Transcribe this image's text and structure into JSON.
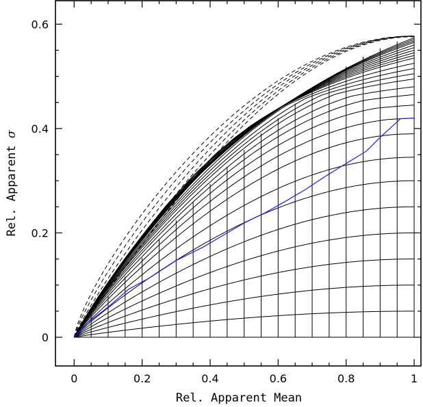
{
  "chart_data": {
    "type": "line",
    "title": "",
    "xlabel": "Rel. Apparent Mean",
    "ylabel_prefix": "Rel. Apparent",
    "ylabel_symbol": "σ",
    "xlim": [
      -0.055,
      1.02
    ],
    "ylim": [
      -0.055,
      0.645
    ],
    "x_ticks": [
      {
        "value": 0,
        "label": "0"
      },
      {
        "value": 0.2,
        "label": "0.2"
      },
      {
        "value": 0.4,
        "label": "0.4"
      },
      {
        "value": 0.6,
        "label": "0.6"
      },
      {
        "value": 0.8,
        "label": "0.8"
      },
      {
        "value": 1,
        "label": "1"
      }
    ],
    "y_ticks": [
      {
        "value": 0,
        "label": "0"
      },
      {
        "value": 0.2,
        "label": "0.2"
      },
      {
        "value": 0.4,
        "label": "0.4"
      },
      {
        "value": 0.6,
        "label": "0.6"
      }
    ],
    "x_minor_step": 0.05,
    "y_minor_step": 0.05,
    "grid": false,
    "solid_envelope_levels": [
      0.05,
      0.1,
      0.15,
      0.2,
      0.25,
      0.3,
      0.345,
      0.39,
      0.42,
      0.445,
      0.465,
      0.48,
      0.495,
      0.505,
      0.515,
      0.525,
      0.535,
      0.54,
      0.545,
      0.55,
      0.555,
      0.56,
      0.565,
      0.568,
      0.571,
      0.574
    ],
    "dashed_envelope_levels": [
      0.576,
      0.5765,
      0.577,
      0.5772,
      0.5774
    ],
    "mean_levels": [
      0.05,
      0.1,
      0.15,
      0.2,
      0.25,
      0.3,
      0.35,
      0.4,
      0.45,
      0.5,
      0.55,
      0.6,
      0.65,
      0.7,
      0.75,
      0.8,
      0.85,
      0.9,
      0.95,
      1.0
    ],
    "series": [
      {
        "color": "#1a1aff",
        "x": [
          0,
          0.04,
          0.1,
          0.16,
          0.22,
          0.3,
          0.38,
          0.44,
          0.5,
          0.56,
          0.62,
          0.68,
          0.74,
          0.8,
          0.86,
          0.9,
          0.93,
          0.96,
          1.0
        ],
        "y": [
          0,
          0.028,
          0.058,
          0.092,
          0.113,
          0.147,
          0.173,
          0.196,
          0.219,
          0.238,
          0.26,
          0.283,
          0.309,
          0.333,
          0.357,
          0.383,
          0.401,
          0.419,
          0.42
        ]
      }
    ]
  }
}
